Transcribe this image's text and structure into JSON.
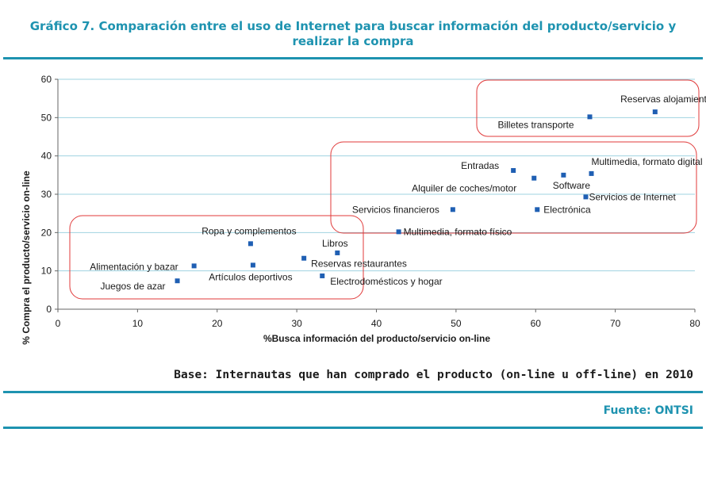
{
  "header": {
    "title_line1": "Gráfico 7. Comparación entre el uso de Internet para buscar información del producto/servicio y",
    "title_line2": "realizar la compra"
  },
  "footer": {
    "base": "Base: Internautas que han comprado el producto (on-line u off-line) en 2010",
    "source": "Fuente: ONTSI"
  },
  "colors": {
    "accent": "#1e93b0",
    "marker": "#1f5fb3",
    "group_box": "#e03a3a",
    "grid": "#9fd3e0"
  },
  "chart_data": {
    "type": "scatter",
    "xlabel": "%Busca información del producto/servicio on-line",
    "ylabel": "% Compra el producto/servicio on-line",
    "xlim": [
      0,
      80
    ],
    "ylim": [
      0,
      60
    ],
    "xticks": [
      0,
      10,
      20,
      30,
      40,
      50,
      60,
      70,
      80
    ],
    "yticks": [
      0,
      10,
      20,
      30,
      40,
      50,
      60
    ],
    "grid": "horizontal",
    "points": [
      {
        "label": "Reservas alojamiento",
        "x": 75,
        "y": 51.5
      },
      {
        "label": "Billetes transporte",
        "x": 66.8,
        "y": 50.2
      },
      {
        "label": "Entradas",
        "x": 57.2,
        "y": 36.2
      },
      {
        "label": "Multimedia, formato digital",
        "x": 67,
        "y": 35.4
      },
      {
        "label": "Software",
        "x": 63.5,
        "y": 35
      },
      {
        "label": "Alquiler de coches/motor",
        "x": 59.8,
        "y": 34.2
      },
      {
        "label": "Servicios de Internet",
        "x": 66.3,
        "y": 29.3
      },
      {
        "label": "Servicios financieros",
        "x": 49.6,
        "y": 26
      },
      {
        "label": "Electrónica",
        "x": 60.2,
        "y": 26
      },
      {
        "label": "Multimedia, formato físico",
        "x": 42.8,
        "y": 20.2
      },
      {
        "label": "Ropa y complementos",
        "x": 24.2,
        "y": 17.1
      },
      {
        "label": "Libros",
        "x": 35.1,
        "y": 14.7
      },
      {
        "label": "Reservas restaurantes",
        "x": 30.9,
        "y": 13.3
      },
      {
        "label": "Artículos deportivos",
        "x": 24.5,
        "y": 11.5
      },
      {
        "label": "Alimentación y bazar",
        "x": 17.1,
        "y": 11.3
      },
      {
        "label": "Electrodomésticos y hogar",
        "x": 33.2,
        "y": 8.7
      },
      {
        "label": "Juegos de azar",
        "x": 15,
        "y": 7.4
      }
    ]
  }
}
